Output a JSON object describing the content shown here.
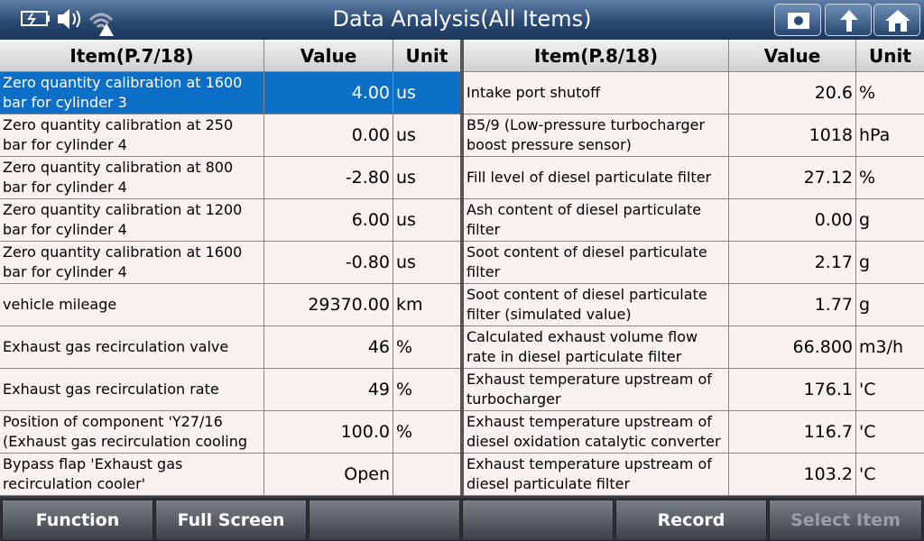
{
  "title": "Data Analysis(All Items)",
  "left": {
    "header": {
      "item": "Item(P.7/18)",
      "value": "Value",
      "unit": "Unit"
    },
    "rows": [
      {
        "item": "Zero quantity calibration at 1600 bar for cylinder 3",
        "value": "4.00",
        "unit": "us"
      },
      {
        "item": "Zero quantity calibration at 250 bar for cylinder 4",
        "value": "0.00",
        "unit": "us"
      },
      {
        "item": "Zero quantity calibration at 800 bar for cylinder 4",
        "value": "-2.80",
        "unit": "us"
      },
      {
        "item": "Zero quantity calibration at 1200 bar for cylinder 4",
        "value": "6.00",
        "unit": "us"
      },
      {
        "item": "Zero quantity calibration at 1600 bar for cylinder 4",
        "value": "-0.80",
        "unit": "us"
      },
      {
        "item": "vehicle mileage",
        "value": "29370.00",
        "unit": "km"
      },
      {
        "item": "Exhaust gas recirculation valve",
        "value": "46",
        "unit": "%"
      },
      {
        "item": "Exhaust gas recirculation rate",
        "value": "49",
        "unit": "%"
      },
      {
        "item": "Position of component 'Y27/16 (Exhaust gas recirculation cooling",
        "value": "100.0",
        "unit": "%"
      },
      {
        "item": "Bypass flap 'Exhaust gas recirculation cooler'",
        "value": "Open"
      }
    ]
  },
  "right": {
    "header": {
      "item": "Item(P.8/18)",
      "value": "Value",
      "unit": "Unit"
    },
    "rows": [
      {
        "item": "Intake port shutoff",
        "value": "20.6",
        "unit": "%"
      },
      {
        "item": "B5/9 (Low-pressure turbocharger boost pressure sensor)",
        "value": "1018",
        "unit": "hPa"
      },
      {
        "item": "Fill level of diesel particulate filter",
        "value": "27.12",
        "unit": "%"
      },
      {
        "item": "Ash content of diesel particulate filter",
        "value": "0.00",
        "unit": "g"
      },
      {
        "item": "Soot content of diesel particulate filter",
        "value": "2.17",
        "unit": "g"
      },
      {
        "item": "Soot content of diesel particulate filter (simulated value)",
        "value": "1.77",
        "unit": "g"
      },
      {
        "item": "Calculated exhaust volume flow rate in diesel particulate filter",
        "value": "66.800",
        "unit": "m3/h"
      },
      {
        "item": "Exhaust temperature upstream of turbocharger",
        "value": "176.1",
        "unit": "'C"
      },
      {
        "item": "Exhaust temperature upstream of diesel oxidation catalytic converter",
        "value": "116.7",
        "unit": "'C"
      },
      {
        "item": "Exhaust temperature upstream of diesel particulate filter",
        "value": "103.2",
        "unit": "'C"
      }
    ]
  },
  "footer": {
    "buttons": [
      "Function",
      "Full Screen",
      "Record",
      "Select Item"
    ]
  }
}
